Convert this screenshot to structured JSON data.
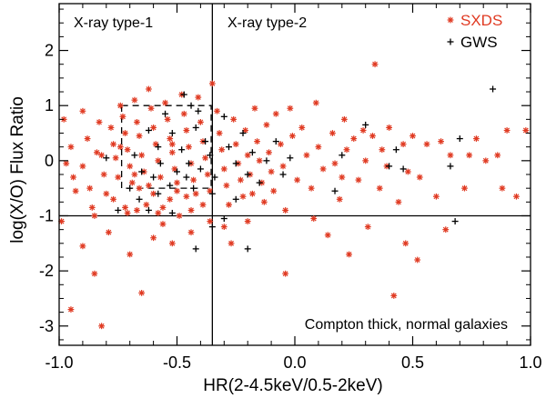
{
  "chart_data": {
    "type": "scatter",
    "xlabel": "HR(2-4.5keV/0.5-2keV)",
    "ylabel": "log(X/O) Flux Ratio",
    "xlim": [
      -1.0,
      1.0
    ],
    "ylim": [
      -3.35,
      2.85
    ],
    "x_ticks": [
      -1.0,
      -0.5,
      0.0,
      0.5,
      1.0
    ],
    "x_tick_labels": [
      "-1.0",
      "-0.5",
      "0.0",
      "0.5",
      "1.0"
    ],
    "y_ticks": [
      -3,
      -2,
      -1,
      0,
      1,
      2
    ],
    "y_tick_labels": [
      "-3",
      "-2",
      "-1",
      "0",
      "1",
      "2"
    ],
    "reference_lines": {
      "vertical_x": -0.35,
      "horizontal_y": -1.0
    },
    "dashed_box": {
      "x": [
        -0.735,
        -0.355
      ],
      "y": [
        -0.5,
        1.0
      ]
    },
    "annotations": {
      "top_left": "X-ray type-1",
      "top_right": "X-ray type-2",
      "bottom_right": "Compton thick, normal galaxies"
    },
    "legend": [
      {
        "name": "SXDS",
        "marker": "asterisk",
        "color": "#e03a22"
      },
      {
        "name": "GWS",
        "marker": "plus",
        "color": "#000000"
      }
    ],
    "series": [
      {
        "name": "SXDS",
        "color": "#e03a22",
        "marker": "asterisk",
        "points": [
          [
            -0.98,
            0.75
          ],
          [
            -0.95,
            0.25
          ],
          [
            -0.97,
            -0.05
          ],
          [
            -0.94,
            -0.3
          ],
          [
            -0.93,
            -0.55
          ],
          [
            -0.99,
            -1.1
          ],
          [
            -0.9,
            0.9
          ],
          [
            -0.88,
            0.4
          ],
          [
            -0.9,
            -0.1
          ],
          [
            -0.87,
            -0.5
          ],
          [
            -0.86,
            -0.85
          ],
          [
            -0.85,
            -1.0
          ],
          [
            -0.83,
            0.7
          ],
          [
            -0.82,
            0.1
          ],
          [
            -0.81,
            -0.25
          ],
          [
            -0.8,
            -0.6
          ],
          [
            -0.84,
            0.15
          ],
          [
            -0.78,
            0.6
          ],
          [
            -0.77,
            0.3
          ],
          [
            -0.76,
            0.05
          ],
          [
            -0.75,
            -0.3
          ],
          [
            -0.77,
            -0.7
          ],
          [
            -0.79,
            -1.3
          ],
          [
            -0.74,
            1.0
          ],
          [
            -0.73,
            0.8
          ],
          [
            -0.72,
            0.5
          ],
          [
            -0.71,
            0.2
          ],
          [
            -0.7,
            -0.1
          ],
          [
            -0.69,
            -0.4
          ],
          [
            -0.72,
            -0.85
          ],
          [
            -0.71,
            -0.95
          ],
          [
            -0.68,
            1.1
          ],
          [
            -0.67,
            0.7
          ],
          [
            -0.66,
            0.45
          ],
          [
            -0.65,
            0.1
          ],
          [
            -0.64,
            -0.2
          ],
          [
            -0.66,
            -0.5
          ],
          [
            -0.63,
            -0.8
          ],
          [
            -0.67,
            -0.9
          ],
          [
            -0.62,
            1.3
          ],
          [
            -0.61,
            0.95
          ],
          [
            -0.6,
            0.6
          ],
          [
            -0.59,
            0.3
          ],
          [
            -0.58,
            0.0
          ],
          [
            -0.57,
            -0.3
          ],
          [
            -0.6,
            -0.6
          ],
          [
            -0.58,
            -0.95
          ],
          [
            -0.56,
            -1.15
          ],
          [
            -0.55,
            1.05
          ],
          [
            -0.54,
            0.75
          ],
          [
            -0.53,
            0.4
          ],
          [
            -0.52,
            0.15
          ],
          [
            -0.51,
            -0.15
          ],
          [
            -0.5,
            -0.4
          ],
          [
            -0.53,
            -0.7
          ],
          [
            -0.49,
            -1.0
          ],
          [
            -0.48,
            1.2
          ],
          [
            -0.47,
            0.85
          ],
          [
            -0.46,
            0.55
          ],
          [
            -0.45,
            0.25
          ],
          [
            -0.44,
            -0.05
          ],
          [
            -0.43,
            -0.35
          ],
          [
            -0.46,
            -0.65
          ],
          [
            -0.44,
            -0.9
          ],
          [
            -0.41,
            1.15
          ],
          [
            -0.4,
            0.7
          ],
          [
            -0.39,
            0.35
          ],
          [
            -0.38,
            0.05
          ],
          [
            -0.37,
            -0.25
          ],
          [
            -0.36,
            -0.55
          ],
          [
            -0.39,
            -0.8
          ],
          [
            -0.36,
            -1.1
          ],
          [
            -0.35,
            1.4
          ],
          [
            -0.62,
            -0.45
          ],
          [
            -0.56,
            -0.85
          ],
          [
            -0.5,
            -0.55
          ],
          [
            -0.52,
            0.3
          ],
          [
            -0.42,
            -0.6
          ],
          [
            -0.74,
            0.25
          ],
          [
            -0.68,
            -0.25
          ],
          [
            -0.33,
            0.9
          ],
          [
            -0.32,
            0.5
          ],
          [
            -0.31,
            0.2
          ],
          [
            -0.3,
            -0.15
          ],
          [
            -0.29,
            -0.45
          ],
          [
            -0.28,
            -0.8
          ],
          [
            -0.3,
            -1.2
          ],
          [
            -0.27,
            -1.5
          ],
          [
            -0.26,
            0.75
          ],
          [
            -0.25,
            0.3
          ],
          [
            -0.24,
            -0.05
          ],
          [
            -0.23,
            -0.35
          ],
          [
            -0.22,
            -0.65
          ],
          [
            -0.21,
            0.55
          ],
          [
            -0.2,
            0.1
          ],
          [
            -0.19,
            -0.25
          ],
          [
            -0.18,
            -0.6
          ],
          [
            -0.17,
            0.95
          ],
          [
            -0.16,
            0.35
          ],
          [
            -0.15,
            0.0
          ],
          [
            -0.14,
            -0.4
          ],
          [
            -0.13,
            -0.75
          ],
          [
            -0.12,
            0.65
          ],
          [
            -0.11,
            0.15
          ],
          [
            -0.1,
            -0.2
          ],
          [
            -0.09,
            -0.55
          ],
          [
            -0.08,
            0.85
          ],
          [
            -0.06,
            0.3
          ],
          [
            -0.05,
            -0.1
          ],
          [
            -0.04,
            -0.9
          ],
          [
            -0.02,
            0.95
          ],
          [
            -0.01,
            0.45
          ],
          [
            0.01,
            -0.35
          ],
          [
            -0.04,
            -2.05
          ],
          [
            0.03,
            0.6
          ],
          [
            0.05,
            0.1
          ],
          [
            0.07,
            -0.5
          ],
          [
            0.09,
            1.05
          ],
          [
            0.1,
            0.25
          ],
          [
            0.12,
            -0.15
          ],
          [
            0.14,
            -1.35
          ],
          [
            0.16,
            0.5
          ],
          [
            0.17,
            -0.05
          ],
          [
            0.19,
            -0.7
          ],
          [
            0.21,
            0.75
          ],
          [
            0.22,
            0.2
          ],
          [
            0.23,
            -1.7
          ],
          [
            0.25,
            0.4
          ],
          [
            0.27,
            -0.35
          ],
          [
            0.29,
            0.55
          ],
          [
            0.3,
            0.0
          ],
          [
            0.31,
            -1.2
          ],
          [
            0.33,
            0.45
          ],
          [
            0.34,
            1.75
          ],
          [
            0.36,
            -0.5
          ],
          [
            0.37,
            0.2
          ],
          [
            0.39,
            -0.1
          ],
          [
            0.4,
            0.6
          ],
          [
            0.42,
            -2.45
          ],
          [
            0.44,
            -0.75
          ],
          [
            0.46,
            0.3
          ],
          [
            0.48,
            -0.2
          ],
          [
            0.5,
            0.45
          ],
          [
            0.53,
            -0.3
          ],
          [
            0.56,
            0.3
          ],
          [
            0.6,
            -0.65
          ],
          [
            0.64,
            -1.25
          ],
          [
            0.66,
            0.1
          ],
          [
            0.72,
            -0.5
          ],
          [
            0.74,
            0.1
          ],
          [
            0.77,
            0.4
          ],
          [
            0.81,
            0.0
          ],
          [
            0.86,
            0.1
          ],
          [
            0.88,
            -0.5
          ],
          [
            0.9,
            0.55
          ],
          [
            0.94,
            -0.65
          ],
          [
            0.98,
            0.55
          ],
          [
            -0.95,
            -2.7
          ],
          [
            -0.82,
            -3.0
          ],
          [
            -0.65,
            -2.4
          ],
          [
            -0.9,
            -1.55
          ],
          [
            -0.7,
            -1.7
          ],
          [
            -0.52,
            -1.5
          ],
          [
            -0.44,
            -1.3
          ],
          [
            -0.6,
            -1.4
          ],
          [
            -0.85,
            -2.05
          ],
          [
            0.2,
            -0.3
          ],
          [
            0.08,
            -1.05
          ],
          [
            -0.2,
            -1.1
          ],
          [
            0.47,
            -1.5
          ],
          [
            0.62,
            0.35
          ],
          [
            0.52,
            -1.8
          ]
        ]
      },
      {
        "name": "GWS",
        "color": "#000000",
        "marker": "plus",
        "points": [
          [
            -0.47,
            1.2
          ],
          [
            -0.44,
            1.0
          ],
          [
            -0.42,
            0.6
          ],
          [
            -0.41,
            0.9
          ],
          [
            -0.52,
            0.5
          ],
          [
            -0.58,
            0.25
          ],
          [
            -0.55,
            0.85
          ],
          [
            -0.62,
            0.55
          ],
          [
            -0.48,
            0.2
          ],
          [
            -0.45,
            -0.05
          ],
          [
            -0.5,
            -0.2
          ],
          [
            -0.53,
            -0.45
          ],
          [
            -0.57,
            -0.05
          ],
          [
            -0.6,
            -0.3
          ],
          [
            -0.65,
            -0.2
          ],
          [
            -0.68,
            0.1
          ],
          [
            -0.7,
            -0.5
          ],
          [
            -0.66,
            -0.7
          ],
          [
            -0.58,
            -0.6
          ],
          [
            -0.46,
            -0.3
          ],
          [
            -0.43,
            -0.5
          ],
          [
            -0.4,
            -0.15
          ],
          [
            -0.38,
            0.35
          ],
          [
            -0.36,
            0.1
          ],
          [
            -0.34,
            -0.3
          ],
          [
            -0.35,
            -0.6
          ],
          [
            -0.3,
            0.8
          ],
          [
            -0.28,
            0.25
          ],
          [
            -0.25,
            -0.05
          ],
          [
            -0.22,
            0.5
          ],
          [
            -0.2,
            -0.25
          ],
          [
            -0.18,
            0.15
          ],
          [
            -0.15,
            -0.4
          ],
          [
            -0.12,
            0.0
          ],
          [
            -0.08,
            0.35
          ],
          [
            -0.05,
            -0.25
          ],
          [
            -0.02,
            0.05
          ],
          [
            -0.25,
            -0.7
          ],
          [
            -0.42,
            -1.6
          ],
          [
            -0.35,
            -1.2
          ],
          [
            -0.2,
            -1.6
          ],
          [
            -0.3,
            -1.05
          ],
          [
            0.2,
            0.1
          ],
          [
            0.17,
            -0.55
          ],
          [
            0.3,
            0.65
          ],
          [
            0.4,
            -0.1
          ],
          [
            0.43,
            0.2
          ],
          [
            0.46,
            -0.15
          ],
          [
            0.66,
            -0.1
          ],
          [
            0.7,
            0.4
          ],
          [
            0.84,
            1.3
          ],
          [
            0.68,
            -1.1
          ],
          [
            -0.8,
            0.05
          ],
          [
            -0.75,
            -0.9
          ],
          [
            -0.62,
            -0.9
          ],
          [
            -0.52,
            -0.95
          ]
        ]
      }
    ]
  }
}
